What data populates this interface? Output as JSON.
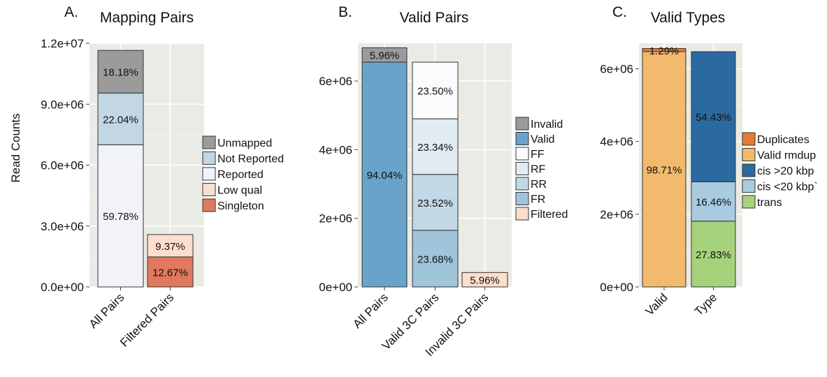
{
  "ylabel": "Read Counts",
  "chart_data": [
    {
      "type": "bar",
      "stacked": true,
      "letter": "A.",
      "title": "Mapping Pairs",
      "ylim": [
        0,
        12000000
      ],
      "yticks": [
        0,
        3000000,
        6000000,
        9000000,
        12000000
      ],
      "yticklabels": [
        "0.0e+00",
        "3.0e+06",
        "6.0e+06",
        "9.0e+06",
        "1.2e+07"
      ],
      "categories": [
        "All Pairs",
        "Filtered Pairs"
      ],
      "grid": true,
      "legend_position": "right",
      "legend": [
        {
          "label": "Unmapped",
          "color": "#9b9b9b"
        },
        {
          "label": "Not Reported",
          "color": "#c2d6e4"
        },
        {
          "label": "Reported",
          "color": "#f2f3f8"
        },
        {
          "label": "Low qual",
          "color": "#fcdecd"
        },
        {
          "label": "Singleton",
          "color": "#e0795f"
        }
      ],
      "bars": [
        {
          "category": "All Pairs",
          "segments": [
            {
              "series": "Reported",
              "value": 7000000,
              "label": "59.78%",
              "color": "#f2f3f8"
            },
            {
              "series": "Not Reported",
              "value": 2550000,
              "label": "22.04%",
              "color": "#c2d6e4"
            },
            {
              "series": "Unmapped",
              "value": 2100000,
              "label": "18.18%",
              "color": "#9b9b9b"
            }
          ]
        },
        {
          "category": "Filtered Pairs",
          "segments": [
            {
              "series": "Singleton",
              "value": 1480000,
              "label": "12.67%",
              "color": "#e0795f"
            },
            {
              "series": "Low qual",
              "value": 1100000,
              "label": "9.37%",
              "color": "#fcdecd"
            }
          ]
        }
      ]
    },
    {
      "type": "bar",
      "stacked": true,
      "letter": "B.",
      "title": "Valid Pairs",
      "ylim": [
        0,
        7100000
      ],
      "yticks": [
        0,
        2000000,
        4000000,
        6000000
      ],
      "yticklabels": [
        "0e+00",
        "2e+06",
        "4e+06",
        "6e+06"
      ],
      "categories": [
        "All Pairs",
        "Valid 3C Pairs",
        "Invalid 3C Pairs"
      ],
      "grid": true,
      "legend_position": "right",
      "legend": [
        {
          "label": "Invalid",
          "color": "#9b9b9b"
        },
        {
          "label": "Valid",
          "color": "#6aa3c9"
        },
        {
          "label": "FF",
          "color": "#fafbfd"
        },
        {
          "label": "RF",
          "color": "#e1ebf4"
        },
        {
          "label": "RR",
          "color": "#c3d8e6"
        },
        {
          "label": "FR",
          "color": "#a0c4da"
        },
        {
          "label": "Filtered",
          "color": "#fcdecd"
        }
      ],
      "bars": [
        {
          "category": "All Pairs",
          "segments": [
            {
              "series": "Valid",
              "value": 6550000,
              "label": "94.04%",
              "color": "#6aa3c9"
            },
            {
              "series": "Invalid",
              "value": 420000,
              "label": "5.96%",
              "color": "#9b9b9b"
            }
          ]
        },
        {
          "category": "Valid 3C Pairs",
          "segments": [
            {
              "series": "FR",
              "value": 1650000,
              "label": "23.68%",
              "color": "#a0c4da"
            },
            {
              "series": "RR",
              "value": 1630000,
              "label": "23.52%",
              "color": "#c3d8e6"
            },
            {
              "series": "RF",
              "value": 1620000,
              "label": "23.34%",
              "color": "#e1ebf4"
            },
            {
              "series": "FF",
              "value": 1650000,
              "label": "23.50%",
              "color": "#fafbfd"
            }
          ]
        },
        {
          "category": "Invalid 3C Pairs",
          "segments": [
            {
              "series": "Filtered",
              "value": 420000,
              "label": "5.96%",
              "color": "#fcdecd"
            }
          ]
        }
      ]
    },
    {
      "type": "bar",
      "stacked": true,
      "letter": "C.",
      "title": "Valid Types",
      "ylim": [
        0,
        6700000
      ],
      "yticks": [
        0,
        2000000,
        4000000,
        6000000
      ],
      "yticklabels": [
        "0e+00",
        "2e+06",
        "4e+06",
        "6e+06"
      ],
      "categories": [
        "Valid",
        "Type"
      ],
      "grid": true,
      "legend_position": "right",
      "legend": [
        {
          "label": "Duplicates",
          "color": "#e57b33"
        },
        {
          "label": "Valid rmdup",
          "color": "#f2ba6d"
        },
        {
          "label": "cis >20 kbp",
          "color": "#2b6aa0"
        },
        {
          "label": "cis <20 kbp`",
          "color": "#a8cbe0"
        },
        {
          "label": "trans",
          "color": "#a6d27c"
        }
      ],
      "bars": [
        {
          "category": "Valid",
          "segments": [
            {
              "series": "Valid rmdup",
              "value": 6470000,
              "label": "98.71%",
              "color": "#f2ba6d"
            },
            {
              "series": "Duplicates",
              "value": 85000,
              "label": "1.29%",
              "color": "#e57b33"
            }
          ]
        },
        {
          "category": "Type",
          "segments": [
            {
              "series": "trans",
              "value": 1810000,
              "label": "27.83%",
              "color": "#a6d27c"
            },
            {
              "series": "cis <20 kbp`",
              "value": 1080000,
              "label": "16.46%",
              "color": "#a8cbe0"
            },
            {
              "series": "cis >20 kbp",
              "value": 3580000,
              "label": "54.43%",
              "color": "#2b6aa0"
            }
          ]
        }
      ]
    }
  ]
}
